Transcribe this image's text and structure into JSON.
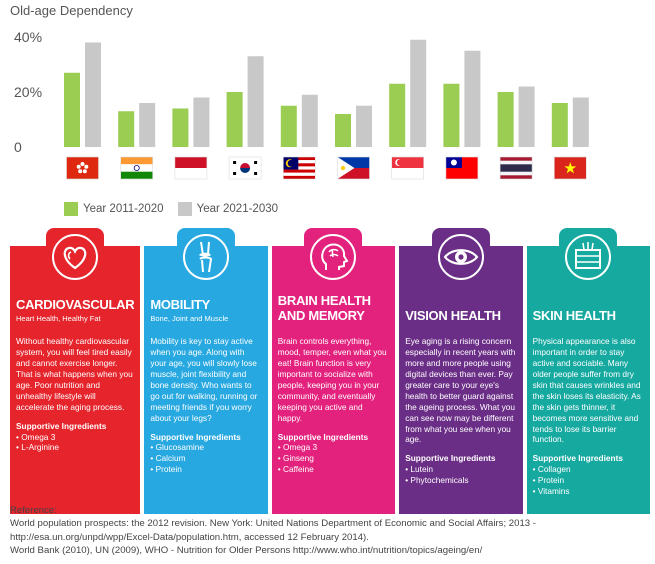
{
  "chart_data": {
    "type": "bar",
    "title": "Old-age Dependency",
    "categories": [
      "Hong Kong",
      "India",
      "Indonesia",
      "South Korea",
      "Malaysia",
      "Philippines",
      "Singapore",
      "Taiwan",
      "Thailand",
      "Vietnam"
    ],
    "series": [
      {
        "name": "Year 2011-2020",
        "color": "#9acd52",
        "values": [
          27,
          13,
          14,
          20,
          15,
          12,
          23,
          23,
          20,
          16
        ]
      },
      {
        "name": "Year 2021-2030",
        "color": "#c8c8c8",
        "values": [
          38,
          16,
          18,
          33,
          19,
          15,
          39,
          35,
          22,
          18
        ]
      }
    ],
    "yticks": [
      "0",
      "20%",
      "40%"
    ],
    "ylim": [
      0,
      45
    ],
    "grid": false
  },
  "flags": [
    {
      "country": "Hong Kong",
      "icon": "hong-kong-flag-icon"
    },
    {
      "country": "India",
      "icon": "india-flag-icon"
    },
    {
      "country": "Indonesia",
      "icon": "indonesia-flag-icon"
    },
    {
      "country": "South Korea",
      "icon": "south-korea-flag-icon"
    },
    {
      "country": "Malaysia",
      "icon": "malaysia-flag-icon"
    },
    {
      "country": "Philippines",
      "icon": "philippines-flag-icon"
    },
    {
      "country": "Singapore",
      "icon": "singapore-flag-icon"
    },
    {
      "country": "Taiwan",
      "icon": "taiwan-flag-icon"
    },
    {
      "country": "Thailand",
      "icon": "thailand-flag-icon"
    },
    {
      "country": "Vietnam",
      "icon": "vietnam-flag-icon"
    }
  ],
  "panels": [
    {
      "id": "cardiovascular",
      "color": "#e5242c",
      "icon": "heart-icon",
      "title": "CARDIOVASCULAR",
      "subtitle": "Heart Health, Healthy Fat",
      "body": "Without healthy cardiovascular system, you will feel tired easily and cannot exercise longer. That is what happens when you age. Poor nutrition and unhealthy lifestyle will accelerate the aging process.",
      "supportive_title": "Supportive Ingredients",
      "ingredients": [
        "Omega 3",
        "L-Arginine"
      ]
    },
    {
      "id": "mobility",
      "color": "#27a8e0",
      "icon": "knee-joint-icon",
      "title": "MOBILITY",
      "subtitle": "Bone, Joint and Muscle",
      "body": "Mobility is key to stay active when you age. Along with your age, you will slowly lose muscle, joint flexibility and bone density. Who wants to go out for walking, running or meeting friends if you worry about your legs?",
      "supportive_title": "Supportive Ingredients",
      "ingredients": [
        "Glucosamine",
        "Calcium",
        "Protein"
      ]
    },
    {
      "id": "brain",
      "color": "#e3227e",
      "icon": "brain-head-icon",
      "title": "BRAIN HEALTH AND MEMORY",
      "subtitle": "",
      "body": "Brain controls everything, mood, temper, even what you eat! Brain function is very important to socialize with people, keeping you in your community, and eventually keeping you active and happy.",
      "supportive_title": "Supportive Ingredients",
      "ingredients": [
        "Omega 3",
        "Ginseng",
        "Caffeine"
      ]
    },
    {
      "id": "vision",
      "color": "#6b2e86",
      "icon": "eye-icon",
      "title": "VISION HEALTH",
      "subtitle": "",
      "body": "Eye aging is a rising concern especially in recent years with more and more people using digital devices than ever. Pay greater care to your eye's health to better guard against the ageing process. What you can see now may be different from what you see when you age.",
      "supportive_title": "Supportive Ingredients",
      "ingredients": [
        "Lutein",
        "Phytochemicals"
      ]
    },
    {
      "id": "skin",
      "color": "#16a9a0",
      "icon": "skin-layers-icon",
      "title": "SKIN HEALTH",
      "subtitle": "",
      "body": "Physical appearance is also important in order to stay active and sociable. Many older people suffer from dry skin that causes wrinkles and the skin loses its elasticity. As the skin gets thinner, it becomes more sensitive and tends to lose its barrier function.",
      "supportive_title": "Supportive Ingredients",
      "ingredients": [
        "Collagen",
        "Protein",
        "Vitamins"
      ]
    }
  ],
  "references": {
    "heading": "Reference:",
    "lines": [
      "World population prospects: the 2012 revision. New York: United Nations Department of Economic and Social Affairs; 2013 -",
      "http://esa.un.org/unpd/wpp/Excel-Data/population.htm, accessed 12 February 2014).",
      "World Bank (2010), UN (2009), WHO - Nutrition for Older Persons http://www.who.int/nutrition/topics/ageing/en/"
    ]
  }
}
